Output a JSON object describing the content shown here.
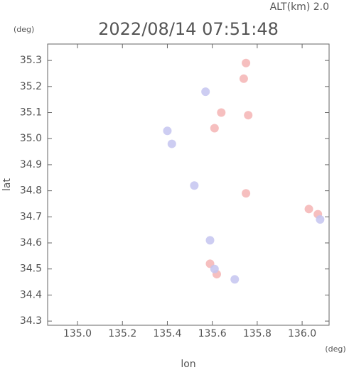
{
  "chart_data": {
    "type": "scatter",
    "title": "2022/08/14 07:51:48",
    "subtitle": "ALT(km) 2.0",
    "x_label": "lon",
    "y_label": "lat",
    "x_unit": "(deg)",
    "y_unit": "(deg)",
    "xlim": [
      134.867,
      136.12
    ],
    "ylim": [
      34.284,
      35.363
    ],
    "xticks": [
      {
        "value": 135,
        "label": "135.0"
      },
      {
        "value": 135.2,
        "label": "135.2"
      },
      {
        "value": 135.4,
        "label": "135.4"
      },
      {
        "value": 135.6,
        "label": "135.6"
      },
      {
        "value": 135.8,
        "label": "135.8"
      },
      {
        "value": 136,
        "label": "136.0"
      }
    ],
    "yticks": [
      34.3,
      34.4,
      34.5,
      34.6,
      34.7,
      34.8,
      34.9,
      {
        "value": 35,
        "label": "35.0"
      },
      35.1,
      35.2,
      35.3
    ],
    "series": [
      {
        "color": "#f4b4b4",
        "x": [
          135.75,
          135.61,
          135.64,
          135.76,
          135.74,
          135.75,
          136.07,
          136.03,
          135.59,
          135.62
        ],
        "y": [
          35.29,
          35.04,
          35.1,
          35.09,
          35.23,
          34.79,
          34.71,
          34.73,
          34.52,
          34.48
        ]
      },
      {
        "color": "#c4c4f0",
        "x": [
          135.42,
          135.4,
          135.52,
          135.57,
          135.61,
          135.7,
          135.59,
          136.08
        ],
        "y": [
          34.98,
          35.03,
          34.82,
          35.18,
          34.5,
          34.46,
          34.61,
          34.69
        ]
      }
    ]
  }
}
